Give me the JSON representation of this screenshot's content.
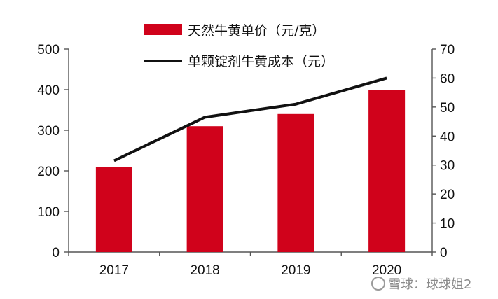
{
  "chart_data": {
    "type": "bar",
    "categories": [
      "2017",
      "2018",
      "2019",
      "2020"
    ],
    "series": [
      {
        "name": "天然牛黄单价（元/克）",
        "type": "bar",
        "axis": "left",
        "values": [
          210,
          310,
          340,
          400
        ],
        "color": "#d0021b"
      },
      {
        "name": "单颗锭剂牛黄成本（元）",
        "type": "line",
        "axis": "right",
        "values": [
          31.5,
          46.5,
          51,
          60
        ],
        "color": "#111111"
      }
    ],
    "y_left": {
      "min": 0,
      "max": 500,
      "ticks": [
        0,
        100,
        200,
        300,
        400,
        500
      ]
    },
    "y_right": {
      "min": 0,
      "max": 70,
      "ticks": [
        0,
        10,
        20,
        30,
        40,
        50,
        60,
        70
      ]
    },
    "legend_position": "top-center",
    "grid": false,
    "title": "",
    "xlabel": "",
    "ylabel": ""
  },
  "watermark": {
    "text": "雪球：球球姐2"
  }
}
